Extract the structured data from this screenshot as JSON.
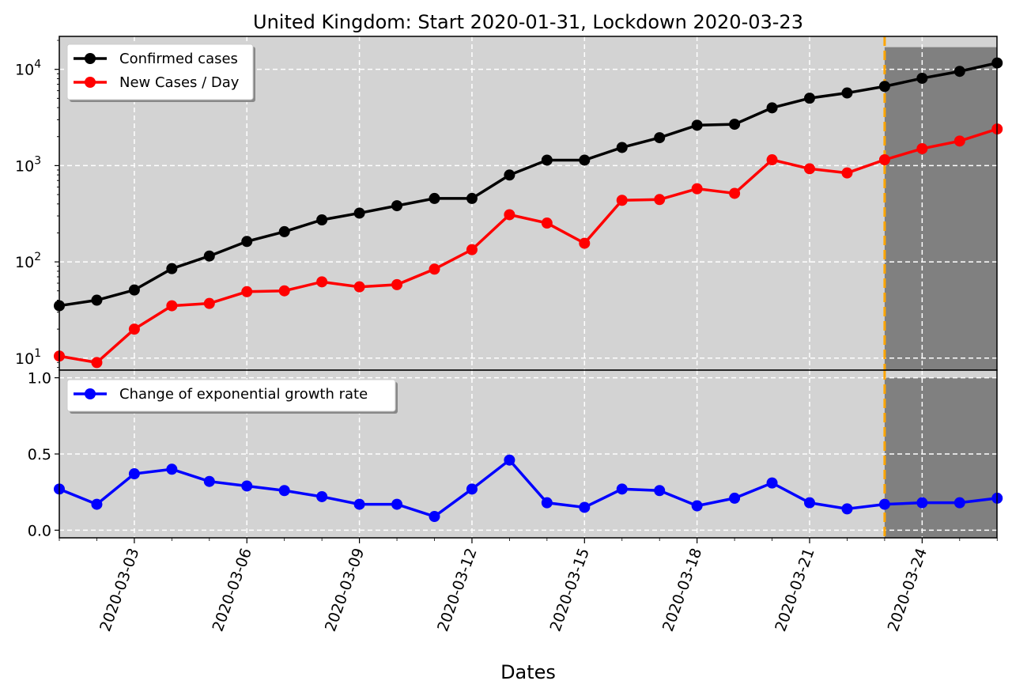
{
  "chart_data": {
    "type": "line",
    "title": "United Kingdom: Start 2020-01-31, Lockdown 2020-03-23",
    "xlabel": "Dates",
    "lockdown_date": "2020-03-23",
    "x": [
      "2020-03-01",
      "2020-03-02",
      "2020-03-03",
      "2020-03-04",
      "2020-03-05",
      "2020-03-06",
      "2020-03-07",
      "2020-03-08",
      "2020-03-09",
      "2020-03-10",
      "2020-03-11",
      "2020-03-12",
      "2020-03-13",
      "2020-03-14",
      "2020-03-15",
      "2020-03-16",
      "2020-03-17",
      "2020-03-18",
      "2020-03-19",
      "2020-03-20",
      "2020-03-21",
      "2020-03-22",
      "2020-03-23",
      "2020-03-24",
      "2020-03-25",
      "2020-03-26"
    ],
    "x_ticks": [
      "2020-03-03",
      "2020-03-06",
      "2020-03-09",
      "2020-03-12",
      "2020-03-15",
      "2020-03-18",
      "2020-03-21",
      "2020-03-24"
    ],
    "colors": {
      "confirmed": "#000000",
      "new": "#ff0000",
      "growth": "#0000ff",
      "lockdown_line": "#ffa500",
      "background": "#d3d3d3",
      "shade": "#808080"
    },
    "top": {
      "yscale": "log",
      "ylim": [
        7.5,
        22000
      ],
      "y_ticks": [
        10,
        100,
        1000,
        10000
      ],
      "y_tick_bases": [
        "10",
        "10",
        "10",
        "10"
      ],
      "y_tick_exps": [
        "1",
        "2",
        "3",
        "4"
      ],
      "legend": [
        "Confirmed cases",
        "New Cases / Day"
      ],
      "series": [
        {
          "name": "Confirmed cases",
          "values": [
            35,
            40,
            51,
            85,
            115,
            163,
            206,
            273,
            321,
            383,
            456,
            456,
            798,
            1140,
            1140,
            1543,
            1950,
            2626,
            2689,
            3983,
            5018,
            5683,
            6650,
            8077,
            9529,
            11658
          ]
        },
        {
          "name": "New Cases / Day",
          "values": [
            10.5,
            9,
            20,
            35,
            37,
            49,
            50,
            62,
            55,
            58,
            84,
            134,
            309,
            253,
            156,
            436,
            444,
            575,
            515,
            1149,
            928,
            839,
            1150,
            1500,
            1800,
            2400
          ]
        }
      ]
    },
    "bottom": {
      "yscale": "linear",
      "ylim": [
        -0.05,
        1.05
      ],
      "y_ticks": [
        0.0,
        0.5,
        1.0
      ],
      "y_tick_labels": [
        "0.0",
        "0.5",
        "1.0"
      ],
      "legend": [
        "Change of exponential growth rate"
      ],
      "series": [
        {
          "name": "Change of exponential growth rate",
          "values": [
            0.27,
            0.17,
            0.37,
            0.4,
            0.32,
            0.29,
            0.26,
            0.22,
            0.17,
            0.17,
            0.09,
            0.27,
            0.46,
            0.18,
            0.15,
            0.27,
            0.26,
            0.16,
            0.21,
            0.31,
            0.18,
            0.14,
            0.17,
            0.18,
            0.18,
            0.21
          ]
        }
      ]
    }
  }
}
